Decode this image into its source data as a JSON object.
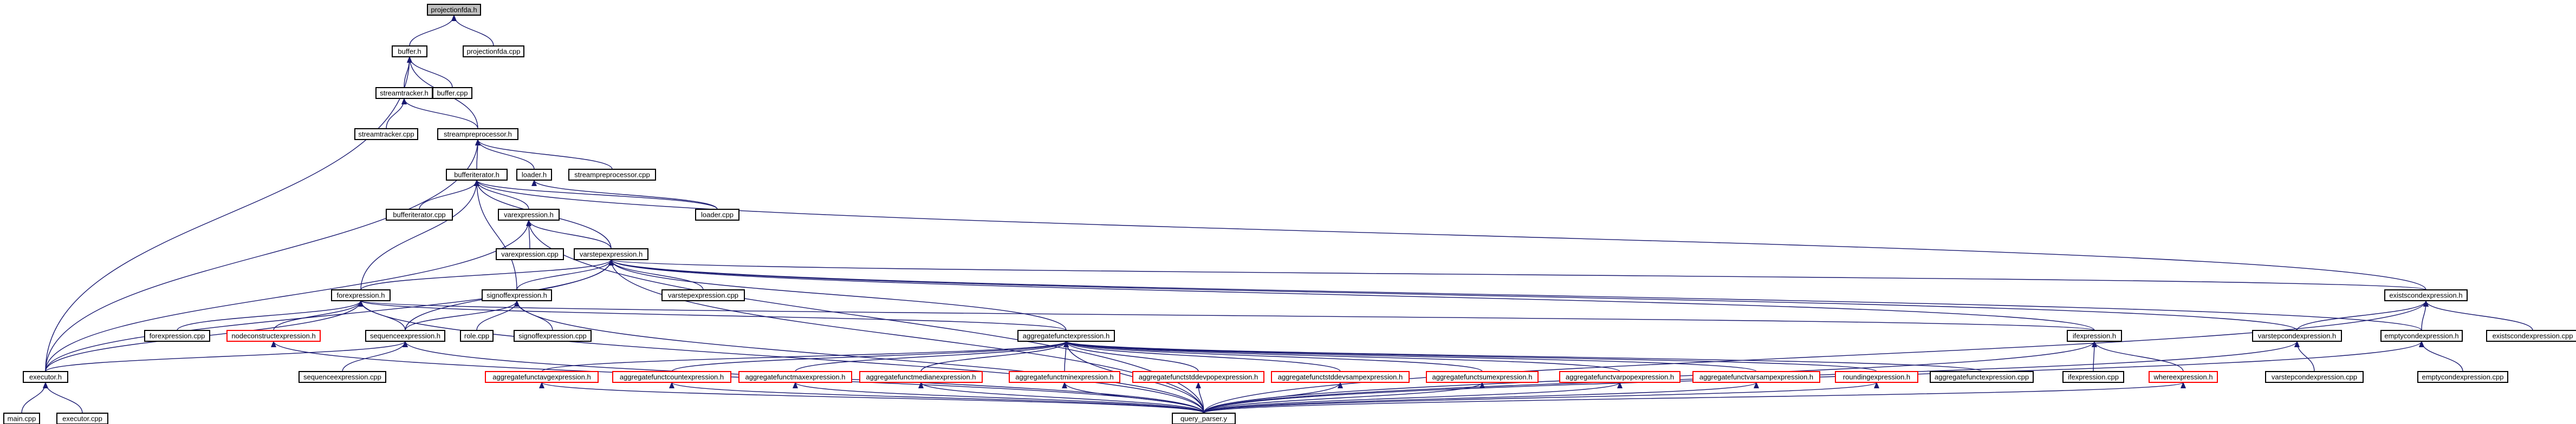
{
  "colors": {
    "background": "#ffffff",
    "edge": "#191970",
    "node_border": "#000000",
    "node_border_incomplete": "#ff0000",
    "highlight_fill": "#bfbfbf",
    "text": "#000000"
  },
  "nodes": [
    {
      "id": "projectionfda_h",
      "label": "projectionfda.h",
      "highlight": true
    },
    {
      "id": "buffer_h",
      "label": "buffer.h"
    },
    {
      "id": "projectionfda_cpp",
      "label": "projectionfda.cpp"
    },
    {
      "id": "streamtracker_h",
      "label": "streamtracker.h"
    },
    {
      "id": "buffer_cpp",
      "label": "buffer.cpp"
    },
    {
      "id": "streamtracker_cpp",
      "label": "streamtracker.cpp"
    },
    {
      "id": "streampreprocessor_h",
      "label": "streampreprocessor.h"
    },
    {
      "id": "bufferiterator_h",
      "label": "bufferiterator.h"
    },
    {
      "id": "loader_h",
      "label": "loader.h"
    },
    {
      "id": "streampreprocessor_cpp",
      "label": "streampreprocessor.cpp"
    },
    {
      "id": "loader_cpp",
      "label": "loader.cpp"
    },
    {
      "id": "bufferiterator_cpp",
      "label": "bufferiterator.cpp"
    },
    {
      "id": "varexpression_h",
      "label": "varexpression.h"
    },
    {
      "id": "varexpression_cpp",
      "label": "varexpression.cpp"
    },
    {
      "id": "varstepexpression_h",
      "label": "varstepexpression.h"
    },
    {
      "id": "forexpression_h",
      "label": "forexpression.h"
    },
    {
      "id": "signoffexpression_h",
      "label": "signoffexpression.h"
    },
    {
      "id": "varstepexpression_cpp",
      "label": "varstepexpression.cpp"
    },
    {
      "id": "existscondexpression_h",
      "label": "existscondexpression.h"
    },
    {
      "id": "forexpression_cpp",
      "label": "forexpression.cpp"
    },
    {
      "id": "nodeconstructexpression_h",
      "label": "nodeconstructexpression.h",
      "incomplete": true
    },
    {
      "id": "sequenceexpression_h",
      "label": "sequenceexpression.h"
    },
    {
      "id": "role_cpp",
      "label": "role.cpp"
    },
    {
      "id": "signoffexpression_cpp",
      "label": "signoffexpression.cpp"
    },
    {
      "id": "aggregatefunctexpression_h",
      "label": "aggregatefunctexpression.h"
    },
    {
      "id": "ifexpression_h",
      "label": "ifexpression.h"
    },
    {
      "id": "varstepcondexpression_h",
      "label": "varstepcondexpression.h"
    },
    {
      "id": "emptycondexpression_h",
      "label": "emptycondexpression.h"
    },
    {
      "id": "existscondexpression_cpp",
      "label": "existscondexpression.cpp"
    },
    {
      "id": "executor_h",
      "label": "executor.h"
    },
    {
      "id": "sequenceexpression_cpp",
      "label": "sequenceexpression.cpp"
    },
    {
      "id": "aggregatefunctavgexpression_h",
      "label": "aggregatefunctavgexpression.h",
      "incomplete": true
    },
    {
      "id": "aggregatefunctcountexpression_h",
      "label": "aggregatefunctcountexpression.h",
      "incomplete": true
    },
    {
      "id": "aggregatefunctmaxexpression_h",
      "label": "aggregatefunctmaxexpression.h",
      "incomplete": true
    },
    {
      "id": "aggregatefunctmedianexpression_h",
      "label": "aggregatefunctmedianexpression.h",
      "incomplete": true
    },
    {
      "id": "aggregatefunctminexpression_h",
      "label": "aggregatefunctminexpression.h",
      "incomplete": true
    },
    {
      "id": "aggregatefunctstddevpopexpression_h",
      "label": "aggregatefunctstddevpopexpression.h",
      "incomplete": true
    },
    {
      "id": "aggregatefunctstddevsampexpression_h",
      "label": "aggregatefunctstddevsampexpression.h",
      "incomplete": true
    },
    {
      "id": "aggregatefunctsumexpression_h",
      "label": "aggregatefunctsumexpression.h",
      "incomplete": true
    },
    {
      "id": "aggregatefunctvarpopexpression_h",
      "label": "aggregatefunctvarpopexpression.h",
      "incomplete": true
    },
    {
      "id": "aggregatefunctvarsampexpression_h",
      "label": "aggregatefunctvarsampexpression.h",
      "incomplete": true
    },
    {
      "id": "roundingexpression_h",
      "label": "roundingexpression.h",
      "incomplete": true
    },
    {
      "id": "aggregatefunctexpression_cpp",
      "label": "aggregatefunctexpression.cpp"
    },
    {
      "id": "ifexpression_cpp",
      "label": "ifexpression.cpp"
    },
    {
      "id": "whereexpression_h",
      "label": "whereexpression.h",
      "incomplete": true
    },
    {
      "id": "varstepcondexpression_cpp",
      "label": "varstepcondexpression.cpp"
    },
    {
      "id": "emptycondexpression_cpp",
      "label": "emptycondexpression.cpp"
    },
    {
      "id": "main_cpp",
      "label": "main.cpp"
    },
    {
      "id": "executor_cpp",
      "label": "executor.cpp"
    },
    {
      "id": "query_parser_y",
      "label": "query_parser.y"
    }
  ],
  "edges": [
    [
      "buffer_h",
      "projectionfda_h"
    ],
    [
      "projectionfda_cpp",
      "projectionfda_h"
    ],
    [
      "buffer_cpp",
      "buffer_h"
    ],
    [
      "streamtracker_h",
      "buffer_h"
    ],
    [
      "streampreprocessor_h",
      "buffer_h"
    ],
    [
      "executor_h",
      "buffer_h"
    ],
    [
      "streamtracker_cpp",
      "streamtracker_h"
    ],
    [
      "streampreprocessor_h",
      "streamtracker_h"
    ],
    [
      "bufferiterator_h",
      "streampreprocessor_h"
    ],
    [
      "loader_h",
      "streampreprocessor_h"
    ],
    [
      "streampreprocessor_cpp",
      "streampreprocessor_h"
    ],
    [
      "executor_h",
      "streampreprocessor_h"
    ],
    [
      "loader_cpp",
      "loader_h"
    ],
    [
      "bufferiterator_cpp",
      "bufferiterator_h"
    ],
    [
      "varexpression_h",
      "bufferiterator_h"
    ],
    [
      "varstepexpression_h",
      "bufferiterator_h"
    ],
    [
      "forexpression_h",
      "bufferiterator_h"
    ],
    [
      "signoffexpression_h",
      "bufferiterator_h"
    ],
    [
      "loader_cpp",
      "bufferiterator_h"
    ],
    [
      "existscondexpression_h",
      "bufferiterator_h"
    ],
    [
      "varexpression_cpp",
      "varexpression_h"
    ],
    [
      "varstepexpression_h",
      "varexpression_h"
    ],
    [
      "executor_h",
      "varexpression_h"
    ],
    [
      "query_parser_y",
      "varexpression_h"
    ],
    [
      "varstepexpression_cpp",
      "varstepexpression_h"
    ],
    [
      "forexpression_h",
      "varstepexpression_h"
    ],
    [
      "signoffexpression_h",
      "varstepexpression_h"
    ],
    [
      "sequenceexpression_h",
      "varstepexpression_h"
    ],
    [
      "aggregatefunctexpression_h",
      "varstepexpression_h"
    ],
    [
      "ifexpression_h",
      "varstepexpression_h"
    ],
    [
      "existscondexpression_h",
      "varstepexpression_h"
    ],
    [
      "varstepcondexpression_h",
      "varstepexpression_h"
    ],
    [
      "emptycondexpression_h",
      "varstepexpression_h"
    ],
    [
      "executor_h",
      "varstepexpression_h"
    ],
    [
      "query_parser_y",
      "varstepexpression_h"
    ],
    [
      "forexpression_cpp",
      "forexpression_h"
    ],
    [
      "nodeconstructexpression_h",
      "forexpression_h"
    ],
    [
      "sequenceexpression_h",
      "forexpression_h"
    ],
    [
      "aggregatefunctexpression_h",
      "forexpression_h"
    ],
    [
      "ifexpression_h",
      "forexpression_h"
    ],
    [
      "executor_h",
      "forexpression_h"
    ],
    [
      "query_parser_y",
      "forexpression_h"
    ],
    [
      "role_cpp",
      "signoffexpression_h"
    ],
    [
      "signoffexpression_cpp",
      "signoffexpression_h"
    ],
    [
      "sequenceexpression_h",
      "signoffexpression_h"
    ],
    [
      "query_parser_y",
      "signoffexpression_h"
    ],
    [
      "sequenceexpression_cpp",
      "sequenceexpression_h"
    ],
    [
      "executor_h",
      "sequenceexpression_h"
    ],
    [
      "query_parser_y",
      "sequenceexpression_h"
    ],
    [
      "aggregatefunctavgexpression_h",
      "aggregatefunctexpression_h"
    ],
    [
      "aggregatefunctcountexpression_h",
      "aggregatefunctexpression_h"
    ],
    [
      "aggregatefunctmaxexpression_h",
      "aggregatefunctexpression_h"
    ],
    [
      "aggregatefunctmedianexpression_h",
      "aggregatefunctexpression_h"
    ],
    [
      "aggregatefunctminexpression_h",
      "aggregatefunctexpression_h"
    ],
    [
      "aggregatefunctstddevpopexpression_h",
      "aggregatefunctexpression_h"
    ],
    [
      "aggregatefunctstddevsampexpression_h",
      "aggregatefunctexpression_h"
    ],
    [
      "aggregatefunctsumexpression_h",
      "aggregatefunctexpression_h"
    ],
    [
      "aggregatefunctvarpopexpression_h",
      "aggregatefunctexpression_h"
    ],
    [
      "aggregatefunctvarsampexpression_h",
      "aggregatefunctexpression_h"
    ],
    [
      "roundingexpression_h",
      "aggregatefunctexpression_h"
    ],
    [
      "aggregatefunctexpression_cpp",
      "aggregatefunctexpression_h"
    ],
    [
      "query_parser_y",
      "aggregatefunctexpression_h"
    ],
    [
      "ifexpression_cpp",
      "ifexpression_h"
    ],
    [
      "whereexpression_h",
      "ifexpression_h"
    ],
    [
      "query_parser_y",
      "ifexpression_h"
    ],
    [
      "varstepcondexpression_h",
      "existscondexpression_h"
    ],
    [
      "emptycondexpression_h",
      "existscondexpression_h"
    ],
    [
      "existscondexpression_cpp",
      "existscondexpression_h"
    ],
    [
      "query_parser_y",
      "existscondexpression_h"
    ],
    [
      "varstepcondexpression_cpp",
      "varstepcondexpression_h"
    ],
    [
      "query_parser_y",
      "varstepcondexpression_h"
    ],
    [
      "emptycondexpression_cpp",
      "emptycondexpression_h"
    ],
    [
      "query_parser_y",
      "emptycondexpression_h"
    ],
    [
      "main_cpp",
      "executor_h"
    ],
    [
      "executor_cpp",
      "executor_h"
    ],
    [
      "query_parser_y",
      "nodeconstructexpression_h"
    ],
    [
      "query_parser_y",
      "aggregatefunctavgexpression_h"
    ],
    [
      "query_parser_y",
      "aggregatefunctcountexpression_h"
    ],
    [
      "query_parser_y",
      "aggregatefunctmaxexpression_h"
    ],
    [
      "query_parser_y",
      "aggregatefunctmedianexpression_h"
    ],
    [
      "query_parser_y",
      "aggregatefunctminexpression_h"
    ],
    [
      "query_parser_y",
      "aggregatefunctstddevpopexpression_h"
    ],
    [
      "query_parser_y",
      "aggregatefunctstddevsampexpression_h"
    ],
    [
      "query_parser_y",
      "aggregatefunctsumexpression_h"
    ],
    [
      "query_parser_y",
      "aggregatefunctvarpopexpression_h"
    ],
    [
      "query_parser_y",
      "aggregatefunctvarsampexpression_h"
    ],
    [
      "query_parser_y",
      "roundingexpression_h"
    ],
    [
      "query_parser_y",
      "whereexpression_h"
    ]
  ]
}
